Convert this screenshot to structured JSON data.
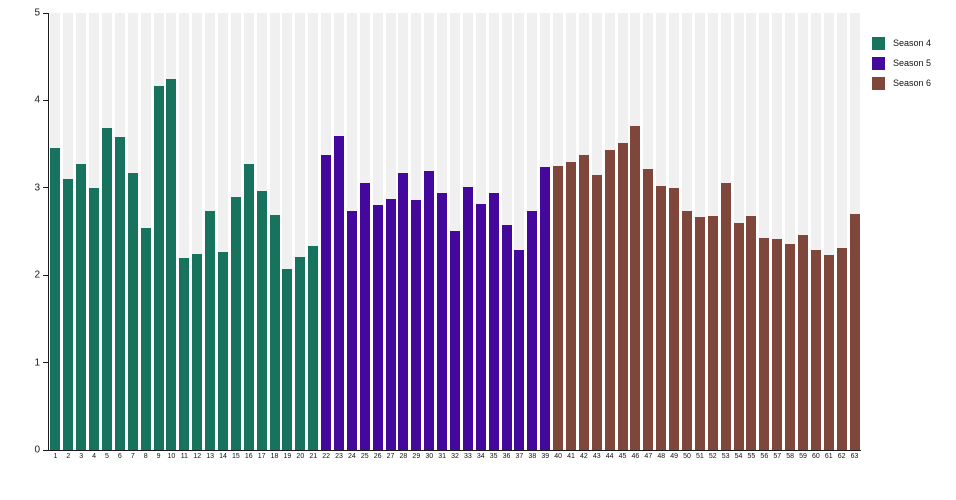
{
  "figure": {
    "background": "#ffffff",
    "stripe_color": "#f0f0f0",
    "axis_color": "#1a1a1a"
  },
  "chart_data": {
    "type": "bar",
    "title": "",
    "xlabel": "",
    "ylabel": "",
    "ylim": [
      0,
      5
    ],
    "yticks": [
      0,
      1,
      2,
      3,
      4,
      5
    ],
    "grid": false,
    "background_stripes": true,
    "legend_position": "top-right-outside",
    "categories": [
      "1",
      "2",
      "3",
      "4",
      "5",
      "6",
      "7",
      "8",
      "9",
      "10",
      "11",
      "12",
      "13",
      "14",
      "15",
      "16",
      "17",
      "18",
      "19",
      "20",
      "21",
      "22",
      "23",
      "24",
      "25",
      "26",
      "27",
      "28",
      "29",
      "30",
      "31",
      "32",
      "33",
      "34",
      "35",
      "36",
      "37",
      "38",
      "39",
      "40",
      "41",
      "42",
      "43",
      "44",
      "45",
      "46",
      "47",
      "48",
      "49",
      "50",
      "51",
      "52",
      "53",
      "54",
      "55",
      "56",
      "57",
      "58",
      "59",
      "60",
      "61",
      "62",
      "63"
    ],
    "series": [
      {
        "name": "Season 4",
        "color": "#17725e",
        "category_start": 1,
        "category_end": 21,
        "values": [
          3.45,
          3.1,
          3.27,
          3.0,
          3.68,
          3.58,
          3.17,
          2.54,
          4.17,
          4.25,
          2.2,
          2.24,
          2.74,
          2.26,
          2.9,
          3.27,
          2.96,
          2.69,
          2.07,
          2.21,
          2.33
        ]
      },
      {
        "name": "Season 5",
        "color": "#45089d",
        "category_start": 22,
        "category_end": 39,
        "values": [
          3.37,
          3.59,
          2.73,
          3.05,
          2.8,
          2.87,
          3.17,
          2.86,
          3.19,
          2.94,
          2.51,
          3.01,
          2.81,
          2.94,
          2.58,
          2.29,
          2.73,
          3.24
        ]
      },
      {
        "name": "Season 6",
        "color": "#7f463c",
        "category_start": 40,
        "category_end": 63,
        "values": [
          3.25,
          3.3,
          3.38,
          3.15,
          3.43,
          3.51,
          3.71,
          3.22,
          3.02,
          3.0,
          2.73,
          2.67,
          2.68,
          3.06,
          2.6,
          2.68,
          2.43,
          2.41,
          2.36,
          2.46,
          2.29,
          2.23,
          2.31,
          2.7
        ]
      }
    ]
  },
  "legend": {
    "items": [
      {
        "label": "Season 4",
        "color": "#17725e"
      },
      {
        "label": "Season 5",
        "color": "#45089d"
      },
      {
        "label": "Season 6",
        "color": "#7f463c"
      }
    ]
  }
}
